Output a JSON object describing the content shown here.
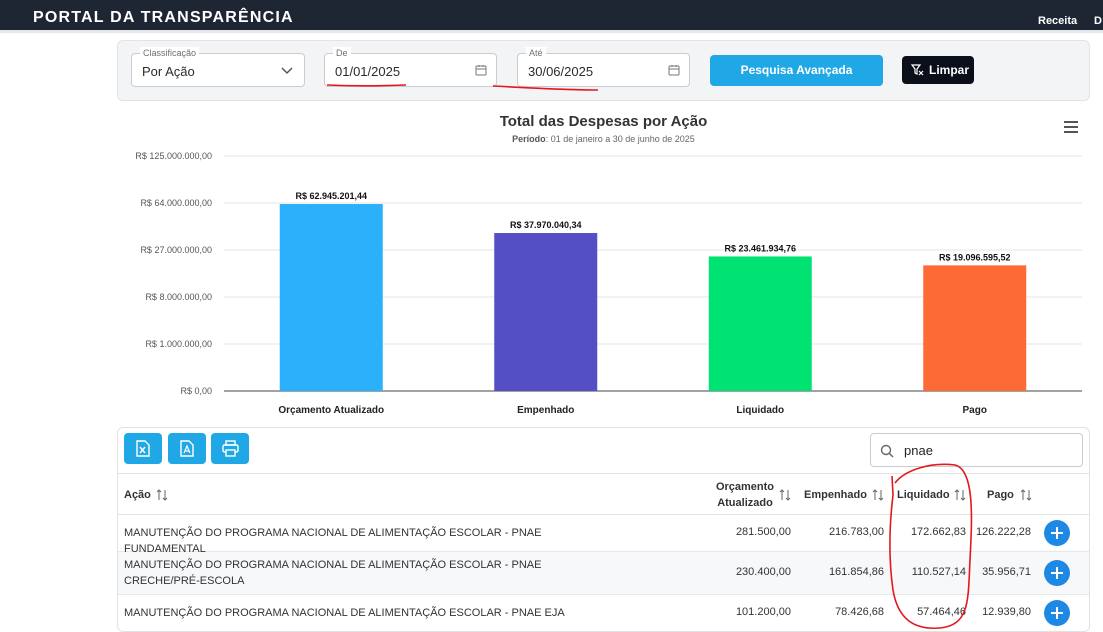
{
  "header": {
    "brand": "PORTAL DA TRANSPARÊNCIA",
    "nav": [
      "Receita",
      "D"
    ]
  },
  "filters": {
    "classificacao_label": "Classificação",
    "classificacao_value": "Por Ação",
    "de_label": "De",
    "de_value": "01/01/2025",
    "ate_label": "Até",
    "ate_value": "30/06/2025",
    "advanced_search_label": "Pesquisa Avançada",
    "clear_label": "Limpar"
  },
  "chart_data": {
    "type": "bar",
    "title": "Total das Despesas por Ação",
    "subtitle_label": "Período",
    "subtitle_text": ": 01 de janeiro a 30 de junho de 2025",
    "categories": [
      "Orçamento Atualizado",
      "Empenhado",
      "Liquidado",
      "Pago"
    ],
    "values": [
      62945201.44,
      37970040.34,
      23461934.76,
      19096595.52
    ],
    "value_labels": [
      "R$ 62.945.201,44",
      "R$ 37.970.040,34",
      "R$ 23.461.934,76",
      "R$ 19.096.595,52"
    ],
    "colors": [
      "#2bb0fb",
      "#544fc5",
      "#00e272",
      "#fe6a35"
    ],
    "y_ticks": [
      0,
      1000000,
      8000000,
      27000000,
      64000000,
      125000000
    ],
    "y_tick_labels": [
      "R$ 0,00",
      "R$ 1.000.000,00",
      "R$ 8.000.000,00",
      "R$ 27.000.000,00",
      "R$ 64.000.000,00",
      "R$ 125.000.000,00"
    ],
    "y_scale": "cube-root",
    "grid": true,
    "legend": "none"
  },
  "toolbar": {
    "buttons": [
      "excel-export",
      "pdf-export",
      "print"
    ]
  },
  "search": {
    "value": "pnae"
  },
  "table": {
    "headers": {
      "acao": "Ação",
      "orcamento_l1": "Orçamento",
      "orcamento_l2": "Atualizado",
      "empenhado": "Empenhado",
      "liquidado": "Liquidado",
      "pago": "Pago"
    },
    "rows": [
      {
        "acao": "MANUTENÇÃO DO PROGRAMA NACIONAL DE ALIMENTAÇÃO ESCOLAR - PNAE FUNDAMENTAL",
        "orcamento": "281.500,00",
        "empenhado": "216.783,00",
        "liquidado": "172.662,83",
        "pago": "126.222,28"
      },
      {
        "acao": "MANUTENÇÃO DO PROGRAMA NACIONAL DE ALIMENTAÇÃO ESCOLAR - PNAE CRECHE/PRÉ-ESCOLA",
        "orcamento": "230.400,00",
        "empenhado": "161.854,86",
        "liquidado": "110.527,14",
        "pago": "35.956,71"
      },
      {
        "acao": "MANUTENÇÃO DO PROGRAMA NACIONAL DE ALIMENTAÇÃO ESCOLAR - PNAE EJA",
        "orcamento": "101.200,00",
        "empenhado": "78.426,68",
        "liquidado": "57.464,46",
        "pago": "12.939,80"
      }
    ]
  },
  "annotations": {
    "color": "#e5171b"
  }
}
